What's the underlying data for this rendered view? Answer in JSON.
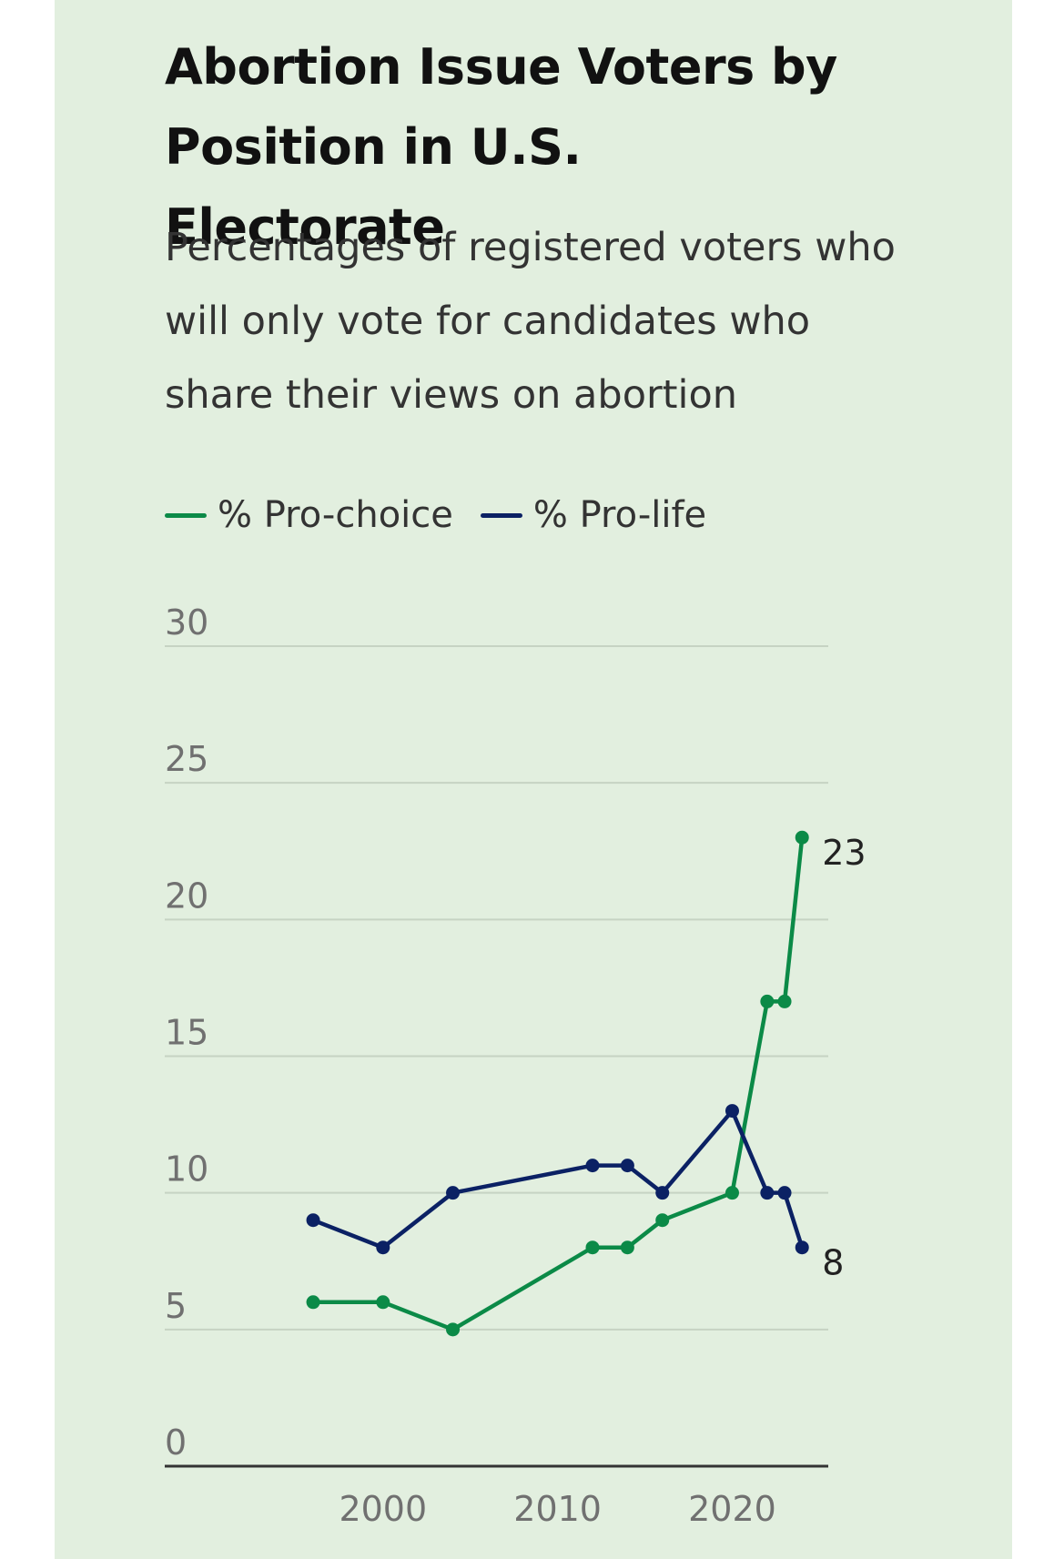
{
  "title": "Abortion Issue Voters by Position in U.S. Electorate",
  "subtitle": "Percentages of registered voters who will only vote for candidates who share their views on abortion",
  "legend": [
    {
      "label": "% Pro-choice",
      "color": "#0b8a47"
    },
    {
      "label": "% Pro-life",
      "color": "#0b2164"
    }
  ],
  "chart_data": {
    "type": "line",
    "title": "Abortion Issue Voters by Position in U.S. Electorate",
    "subtitle": "Percentages of registered voters who will only vote for candidates who share their views on abortion",
    "xlabel": "",
    "ylabel": "",
    "xlim": [
      1987.5,
      2025.5
    ],
    "ylim": [
      0,
      30
    ],
    "yticks": [
      0,
      5,
      10,
      15,
      20,
      25,
      30
    ],
    "xticks": [
      2000,
      2010,
      2020
    ],
    "grid": true,
    "legend_position": "top-left",
    "series": [
      {
        "name": "% Pro-choice",
        "color": "#0b8a47",
        "x": [
          1996,
          2000,
          2004,
          2012,
          2014,
          2016,
          2020,
          2022,
          2023,
          2024
        ],
        "values": [
          6,
          6,
          5,
          8,
          8,
          9,
          10,
          17,
          17,
          23
        ],
        "end_label": "23"
      },
      {
        "name": "% Pro-life",
        "color": "#0b2164",
        "x": [
          1996,
          2000,
          2004,
          2012,
          2014,
          2016,
          2020,
          2022,
          2023,
          2024
        ],
        "values": [
          9,
          8,
          10,
          11,
          11,
          10,
          13,
          10,
          10,
          8
        ],
        "end_label": "8"
      }
    ]
  }
}
